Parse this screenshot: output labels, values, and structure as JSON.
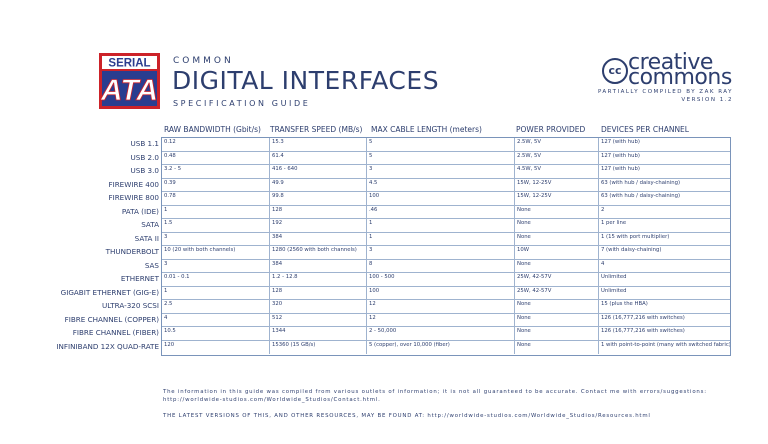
{
  "logo": {
    "top_text": "SERIAL",
    "bottom_text": "ATA"
  },
  "header": {
    "kicker": "COMMON",
    "title": "DIGITAL INTERFACES",
    "subtitle": "SPECIFICATION GUIDE"
  },
  "cc": {
    "mark": "cc",
    "word1": "creative",
    "word2": "commons",
    "compiled_by": "PARTIALLY COMPILED BY ZAK RAY",
    "version": "VERSION 1.2"
  },
  "table": {
    "columns": [
      "RAW BANDWIDTH (Gbit/s)",
      "TRANSFER SPEED (MB/s)",
      "MAX CABLE LENGTH (meters)",
      "POWER PROVIDED",
      "DEVICES PER CHANNEL"
    ],
    "rows": [
      {
        "name": "USB 1.1",
        "cells": [
          "0.12",
          "15.3",
          "5",
          "2.5W, 5V",
          "127 (with hub)"
        ]
      },
      {
        "name": "USB 2.0",
        "cells": [
          "0.48",
          "61.4",
          "5",
          "2.5W, 5V",
          "127 (with hub)"
        ]
      },
      {
        "name": "USB 3.0",
        "cells": [
          "3.2 - 5",
          "416 - 640",
          "3",
          "4.5W, 5V",
          "127 (with hub)"
        ]
      },
      {
        "name": "FIREWIRE 400",
        "cells": [
          "0.39",
          "49.9",
          "4.5",
          "15W, 12-25V",
          "63 (with hub / daisy-chaining)"
        ]
      },
      {
        "name": "FIREWIRE 800",
        "cells": [
          "0.78",
          "99.8",
          "100",
          "15W, 12-25V",
          "63 (with hub / daisy-chaining)"
        ]
      },
      {
        "name": "PATA (IDE)",
        "cells": [
          "1",
          "128",
          ".46",
          "None",
          "2"
        ]
      },
      {
        "name": "SATA",
        "cells": [
          "1.5",
          "192",
          "1",
          "None",
          "1 per line"
        ]
      },
      {
        "name": "SATA II",
        "cells": [
          "3",
          "384",
          "1",
          "None",
          "1 (15 with port multiplier)"
        ]
      },
      {
        "name": "THUNDERBOLT",
        "cells": [
          "10 (20 with both channels)",
          "1280 (2560 with both channels)",
          "3",
          "10W",
          "7 (with daisy-chaining)"
        ]
      },
      {
        "name": "SAS",
        "cells": [
          "3",
          "384",
          "8",
          "None",
          "4"
        ]
      },
      {
        "name": "ETHERNET",
        "cells": [
          "0.01 - 0.1",
          "1.2 - 12.8",
          "100 - 500",
          "25W, 42-57V",
          "Unlimited"
        ]
      },
      {
        "name": "GIGABIT ETHERNET (GIG-E)",
        "cells": [
          "1",
          "128",
          "100",
          "25W, 42-57V",
          "Unlimited"
        ]
      },
      {
        "name": "ULTRA-320 SCSI",
        "cells": [
          "2.5",
          "320",
          "12",
          "None",
          "15 (plus the HBA)"
        ]
      },
      {
        "name": "FIBRE CHANNEL (COPPER)",
        "cells": [
          "4",
          "512",
          "12",
          "None",
          "126 (16,777,216 with switches)"
        ]
      },
      {
        "name": "FIBRE CHANNEL (FIBER)",
        "cells": [
          "10.5",
          "1344",
          "2 - 50,000",
          "None",
          "126 (16,777,216 with switches)"
        ]
      },
      {
        "name": "INFINIBAND 12X QUAD-RATE",
        "cells": [
          "120",
          "15360 (15 GB/s)",
          "5 (copper), over 10,000 (fiber)",
          "None",
          "1 with point-to-point (many with switched fabric)"
        ]
      }
    ]
  },
  "footer": {
    "line1": "The information in this guide was compiled from various outlets of information; it is not all guaranteed to be accurate. Contact me with errors/suggestions: http://worldwide-studios.com/Worldwide_Studios/Contact.html.",
    "line2": "THE LATEST VERSIONS OF THIS, AND OTHER RESOURCES, MAY BE FOUND AT: http://worldwide-studios.com/Worldwide_Studios/Resources.html"
  },
  "colors": {
    "navy": "#2d3e6e",
    "sata_red": "#cc2229",
    "sata_blue": "#2a3d8f",
    "grid": "#9fb3cf"
  }
}
